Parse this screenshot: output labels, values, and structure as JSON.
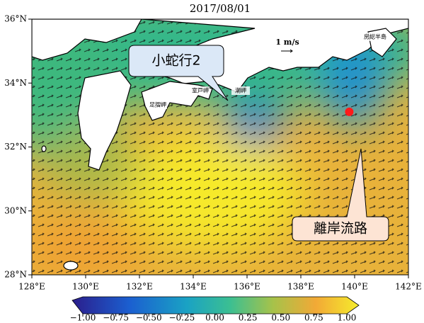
{
  "chart_data": {
    "type": "map",
    "title": "2017/08/01",
    "xlim": [
      128,
      142
    ],
    "ylim": [
      28,
      36
    ],
    "xticks": [
      {
        "value": 128,
        "label": "128°E"
      },
      {
        "value": 130,
        "label": "130°E"
      },
      {
        "value": 132,
        "label": "132°E"
      },
      {
        "value": 134,
        "label": "134°E"
      },
      {
        "value": 136,
        "label": "136°E"
      },
      {
        "value": 138,
        "label": "138°E"
      },
      {
        "value": 140,
        "label": "140°E"
      },
      {
        "value": 142,
        "label": "142°E"
      }
    ],
    "yticks": [
      {
        "value": 28,
        "label": "28°N"
      },
      {
        "value": 30,
        "label": "30°N"
      },
      {
        "value": 32,
        "label": "32°N"
      },
      {
        "value": 34,
        "label": "34°N"
      },
      {
        "value": 36,
        "label": "36°N"
      }
    ],
    "colorbar": {
      "lim": [
        -1,
        1
      ],
      "ticks": [
        {
          "value": -1,
          "label": "−1.00"
        },
        {
          "value": -0.75,
          "label": "−0.75"
        },
        {
          "value": -0.5,
          "label": "−0.50"
        },
        {
          "value": -0.25,
          "label": "−0.25"
        },
        {
          "value": 0,
          "label": "0.00"
        },
        {
          "value": 0.25,
          "label": "0.25"
        },
        {
          "value": 0.5,
          "label": "0.50"
        },
        {
          "value": 0.75,
          "label": "0.75"
        },
        {
          "value": 1,
          "label": "1.00"
        }
      ]
    },
    "points": {
      "x": [
        139.8
      ],
      "y": [
        33.1
      ],
      "color": "#ff1a1a"
    },
    "annotations": {
      "callout_meander": "小蛇行2",
      "callout_offshore": "離岸流路",
      "arrow_scale": "1 m/s",
      "places": [
        "足摺岬",
        "室戸岬",
        "潮岬",
        "房総半島"
      ]
    }
  }
}
